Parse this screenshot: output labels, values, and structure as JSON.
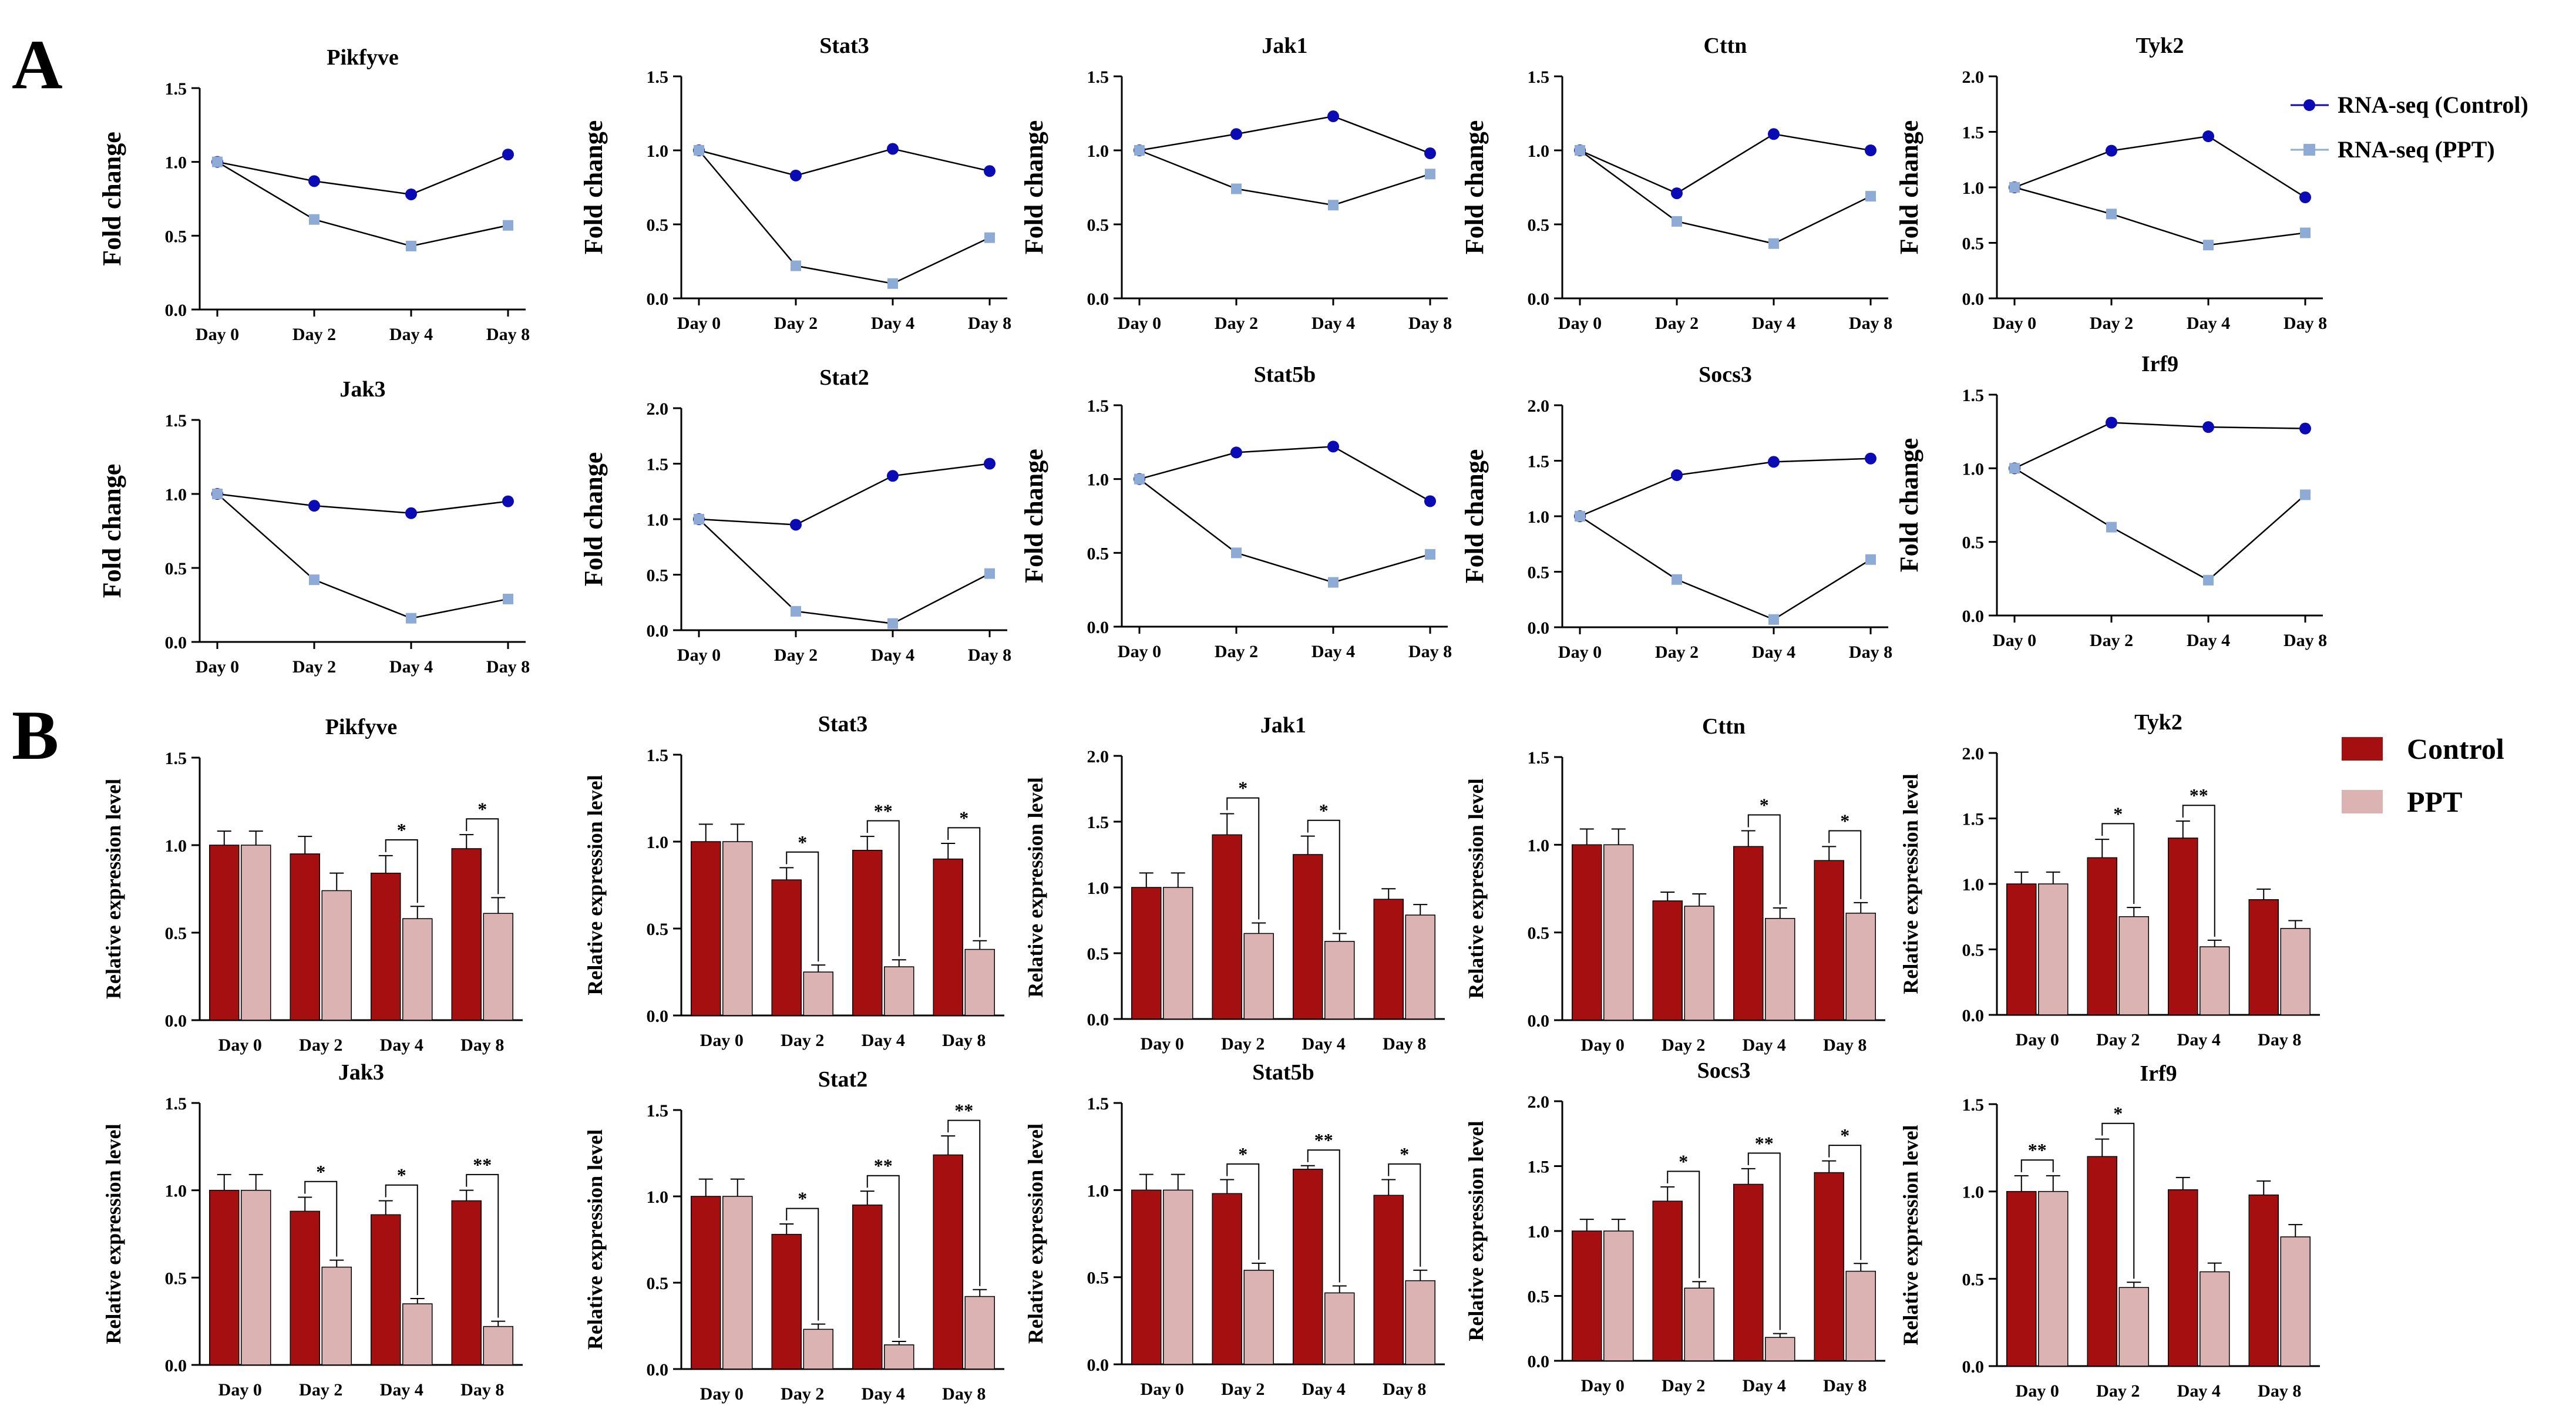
{
  "panel_labels": {
    "A": "A",
    "B": "B"
  },
  "colors": {
    "rna_control": "#0b0bb5",
    "rna_ppt": "#8eabd6",
    "bar_control": "#a50f0f",
    "bar_ppt": "#dcb3b3",
    "axis": "#000000"
  },
  "legend_A": {
    "control": "RNA-seq (Control)",
    "ppt": "RNA-seq (PPT)"
  },
  "legend_B": {
    "control": "Control",
    "ppt": "PPT"
  },
  "chart_data": [
    {
      "panel": "A",
      "type": "line",
      "title": "Pikfyve",
      "ylabel": "Fold change",
      "categories": [
        "Day 0",
        "Day 2",
        "Day 4",
        "Day 8"
      ],
      "ylim": [
        0,
        1.5
      ],
      "yticks": [
        "0.0",
        "0.5",
        "1.0",
        "1.5"
      ],
      "series": [
        {
          "name": "RNA-seq (Control)",
          "values": [
            1.0,
            0.87,
            0.78,
            1.05
          ]
        },
        {
          "name": "RNA-seq (PPT)",
          "values": [
            1.0,
            0.61,
            0.43,
            0.57
          ]
        }
      ]
    },
    {
      "panel": "A",
      "type": "line",
      "title": "Stat3",
      "ylabel": "Fold change",
      "categories": [
        "Day 0",
        "Day 2",
        "Day 4",
        "Day 8"
      ],
      "ylim": [
        0,
        1.5
      ],
      "yticks": [
        "0.0",
        "0.5",
        "1.0",
        "1.5"
      ],
      "series": [
        {
          "name": "RNA-seq (Control)",
          "values": [
            1.0,
            0.83,
            1.01,
            0.86
          ]
        },
        {
          "name": "RNA-seq (PPT)",
          "values": [
            1.0,
            0.22,
            0.1,
            0.41
          ]
        }
      ]
    },
    {
      "panel": "A",
      "type": "line",
      "title": "Jak1",
      "ylabel": "Fold change",
      "categories": [
        "Day 0",
        "Day 2",
        "Day 4",
        "Day 8"
      ],
      "ylim": [
        0,
        1.5
      ],
      "yticks": [
        "0.0",
        "0.5",
        "1.0",
        "1.5"
      ],
      "series": [
        {
          "name": "RNA-seq (Control)",
          "values": [
            1.0,
            1.11,
            1.23,
            0.98
          ]
        },
        {
          "name": "RNA-seq (PPT)",
          "values": [
            1.0,
            0.74,
            0.63,
            0.84
          ]
        }
      ]
    },
    {
      "panel": "A",
      "type": "line",
      "title": "Cttn",
      "ylabel": "Fold change",
      "categories": [
        "Day 0",
        "Day 2",
        "Day 4",
        "Day 8"
      ],
      "ylim": [
        0,
        1.5
      ],
      "yticks": [
        "0.0",
        "0.5",
        "1.0",
        "1.5"
      ],
      "series": [
        {
          "name": "RNA-seq (Control)",
          "values": [
            1.0,
            0.71,
            1.11,
            1.0
          ]
        },
        {
          "name": "RNA-seq (PPT)",
          "values": [
            1.0,
            0.52,
            0.37,
            0.69
          ]
        }
      ]
    },
    {
      "panel": "A",
      "type": "line",
      "title": "Tyk2",
      "ylabel": "Fold change",
      "categories": [
        "Day 0",
        "Day 2",
        "Day 4",
        "Day 8"
      ],
      "ylim": [
        0,
        2.0
      ],
      "yticks": [
        "0.0",
        "0.5",
        "1.0",
        "1.5",
        "2.0"
      ],
      "series": [
        {
          "name": "RNA-seq (Control)",
          "values": [
            1.0,
            1.33,
            1.46,
            0.91
          ]
        },
        {
          "name": "RNA-seq (PPT)",
          "values": [
            1.0,
            0.76,
            0.48,
            0.59
          ]
        }
      ]
    },
    {
      "panel": "A",
      "type": "line",
      "title": "Jak3",
      "ylabel": "Fold change",
      "categories": [
        "Day 0",
        "Day 2",
        "Day 4",
        "Day 8"
      ],
      "ylim": [
        0,
        1.5
      ],
      "yticks": [
        "0.0",
        "0.5",
        "1.0",
        "1.5"
      ],
      "series": [
        {
          "name": "RNA-seq (Control)",
          "values": [
            1.0,
            0.92,
            0.87,
            0.95
          ]
        },
        {
          "name": "RNA-seq (PPT)",
          "values": [
            1.0,
            0.42,
            0.16,
            0.29
          ]
        }
      ]
    },
    {
      "panel": "A",
      "type": "line",
      "title": "Stat2",
      "ylabel": "Fold change",
      "categories": [
        "Day 0",
        "Day 2",
        "Day 4",
        "Day 8"
      ],
      "ylim": [
        0,
        2.0
      ],
      "yticks": [
        "0.0",
        "0.5",
        "1.0",
        "1.5",
        "2.0"
      ],
      "series": [
        {
          "name": "RNA-seq (Control)",
          "values": [
            1.0,
            0.95,
            1.39,
            1.5
          ]
        },
        {
          "name": "RNA-seq (PPT)",
          "values": [
            1.0,
            0.17,
            0.06,
            0.51
          ]
        }
      ]
    },
    {
      "panel": "A",
      "type": "line",
      "title": "Stat5b",
      "ylabel": "Fold change",
      "categories": [
        "Day 0",
        "Day 2",
        "Day 4",
        "Day 8"
      ],
      "ylim": [
        0,
        1.5
      ],
      "yticks": [
        "0.0",
        "0.5",
        "1.0",
        "1.5"
      ],
      "series": [
        {
          "name": "RNA-seq (Control)",
          "values": [
            1.0,
            1.18,
            1.22,
            0.85
          ]
        },
        {
          "name": "RNA-seq (PPT)",
          "values": [
            1.0,
            0.5,
            0.3,
            0.49
          ]
        }
      ]
    },
    {
      "panel": "A",
      "type": "line",
      "title": "Socs3",
      "ylabel": "Fold change",
      "categories": [
        "Day 0",
        "Day 2",
        "Day 4",
        "Day 8"
      ],
      "ylim": [
        0,
        2.0
      ],
      "yticks": [
        "0.0",
        "0.5",
        "1.0",
        "1.5",
        "2.0"
      ],
      "series": [
        {
          "name": "RNA-seq (Control)",
          "values": [
            1.0,
            1.37,
            1.49,
            1.52
          ]
        },
        {
          "name": "RNA-seq (PPT)",
          "values": [
            1.0,
            0.43,
            0.07,
            0.61
          ]
        }
      ]
    },
    {
      "panel": "A",
      "type": "line",
      "title": "Irf9",
      "ylabel": "Fold change",
      "categories": [
        "Day 0",
        "Day 2",
        "Day 4",
        "Day 8"
      ],
      "ylim": [
        0,
        1.5
      ],
      "yticks": [
        "0.0",
        "0.5",
        "1.0",
        "1.5"
      ],
      "series": [
        {
          "name": "RNA-seq (Control)",
          "values": [
            1.0,
            1.31,
            1.28,
            1.27
          ]
        },
        {
          "name": "RNA-seq (PPT)",
          "values": [
            1.0,
            0.6,
            0.24,
            0.82
          ]
        }
      ]
    },
    {
      "panel": "B",
      "type": "bar",
      "title": "Pikfyve",
      "ylabel": "Relative expression level",
      "categories": [
        "Day 0",
        "Day 2",
        "Day 4",
        "Day 8"
      ],
      "ylim": [
        0,
        1.5
      ],
      "yticks": [
        "0.0",
        "0.5",
        "1.0",
        "1.5"
      ],
      "series": [
        {
          "name": "Control",
          "values": [
            1.0,
            0.95,
            0.84,
            0.98
          ],
          "errors": [
            0.08,
            0.1,
            0.1,
            0.08
          ]
        },
        {
          "name": "PPT",
          "values": [
            1.0,
            0.74,
            0.58,
            0.61
          ],
          "errors": [
            0.08,
            0.1,
            0.07,
            0.09
          ]
        }
      ],
      "significance": [
        "",
        "",
        "*",
        "*"
      ]
    },
    {
      "panel": "B",
      "type": "bar",
      "title": "Stat3",
      "ylabel": "Relative expression level",
      "categories": [
        "Day 0",
        "Day 2",
        "Day 4",
        "Day 8"
      ],
      "ylim": [
        0,
        1.5
      ],
      "yticks": [
        "0.0",
        "0.5",
        "1.0",
        "1.5"
      ],
      "series": [
        {
          "name": "Control",
          "values": [
            1.0,
            0.78,
            0.95,
            0.9
          ],
          "errors": [
            0.1,
            0.07,
            0.08,
            0.09
          ]
        },
        {
          "name": "PPT",
          "values": [
            1.0,
            0.25,
            0.28,
            0.38
          ],
          "errors": [
            0.1,
            0.04,
            0.04,
            0.05
          ]
        }
      ],
      "significance": [
        "",
        "*",
        "**",
        "*"
      ]
    },
    {
      "panel": "B",
      "type": "bar",
      "title": "Jak1",
      "ylabel": "Relative expression level",
      "categories": [
        "Day 0",
        "Day 2",
        "Day 4",
        "Day 8"
      ],
      "ylim": [
        0,
        2.0
      ],
      "yticks": [
        "0.0",
        "0.5",
        "1.0",
        "1.5",
        "2.0"
      ],
      "series": [
        {
          "name": "Control",
          "values": [
            1.0,
            1.4,
            1.25,
            0.91
          ],
          "errors": [
            0.11,
            0.16,
            0.14,
            0.08
          ]
        },
        {
          "name": "PPT",
          "values": [
            1.0,
            0.65,
            0.59,
            0.79
          ],
          "errors": [
            0.11,
            0.08,
            0.06,
            0.08
          ]
        }
      ],
      "significance": [
        "",
        "*",
        "*",
        ""
      ]
    },
    {
      "panel": "B",
      "type": "bar",
      "title": "Cttn",
      "ylabel": "Relative expression level",
      "categories": [
        "Day 0",
        "Day 2",
        "Day 4",
        "Day 8"
      ],
      "ylim": [
        0,
        1.5
      ],
      "yticks": [
        "0.0",
        "0.5",
        "1.0",
        "1.5"
      ],
      "series": [
        {
          "name": "Control",
          "values": [
            1.0,
            0.68,
            0.99,
            0.91
          ],
          "errors": [
            0.09,
            0.05,
            0.09,
            0.08
          ]
        },
        {
          "name": "PPT",
          "values": [
            1.0,
            0.65,
            0.58,
            0.61
          ],
          "errors": [
            0.09,
            0.07,
            0.06,
            0.06
          ]
        }
      ],
      "significance": [
        "",
        "",
        "*",
        "*"
      ]
    },
    {
      "panel": "B",
      "type": "bar",
      "title": "Tyk2",
      "ylabel": "Relative expression level",
      "categories": [
        "Day 0",
        "Day 2",
        "Day 4",
        "Day 8"
      ],
      "ylim": [
        0,
        2.0
      ],
      "yticks": [
        "0.0",
        "0.5",
        "1.0",
        "1.5",
        "2.0"
      ],
      "series": [
        {
          "name": "Control",
          "values": [
            1.0,
            1.2,
            1.35,
            0.88
          ],
          "errors": [
            0.09,
            0.14,
            0.13,
            0.08
          ]
        },
        {
          "name": "PPT",
          "values": [
            1.0,
            0.75,
            0.52,
            0.66
          ],
          "errors": [
            0.09,
            0.07,
            0.05,
            0.06
          ]
        }
      ],
      "significance": [
        "",
        "*",
        "**",
        ""
      ]
    },
    {
      "panel": "B",
      "type": "bar",
      "title": "Jak3",
      "ylabel": "Relative expression level",
      "categories": [
        "Day 0",
        "Day 2",
        "Day 4",
        "Day 8"
      ],
      "ylim": [
        0,
        1.5
      ],
      "yticks": [
        "0.0",
        "0.5",
        "1.0",
        "1.5"
      ],
      "series": [
        {
          "name": "Control",
          "values": [
            1.0,
            0.88,
            0.86,
            0.94
          ],
          "errors": [
            0.09,
            0.08,
            0.08,
            0.06
          ]
        },
        {
          "name": "PPT",
          "values": [
            1.0,
            0.56,
            0.35,
            0.22
          ],
          "errors": [
            0.09,
            0.04,
            0.03,
            0.03
          ]
        }
      ],
      "significance": [
        "",
        "*",
        "*",
        "**"
      ]
    },
    {
      "panel": "B",
      "type": "bar",
      "title": "Stat2",
      "ylabel": "Relative expression level",
      "categories": [
        "Day 0",
        "Day 2",
        "Day 4",
        "Day 8"
      ],
      "ylim": [
        0,
        1.5
      ],
      "yticks": [
        "0.0",
        "0.5",
        "1.0",
        "1.5"
      ],
      "series": [
        {
          "name": "Control",
          "values": [
            1.0,
            0.78,
            0.95,
            1.24
          ],
          "errors": [
            0.1,
            0.06,
            0.08,
            0.11
          ]
        },
        {
          "name": "PPT",
          "values": [
            1.0,
            0.23,
            0.14,
            0.42
          ],
          "errors": [
            0.1,
            0.03,
            0.02,
            0.04
          ]
        }
      ],
      "significance": [
        "",
        "*",
        "**",
        "**"
      ]
    },
    {
      "panel": "B",
      "type": "bar",
      "title": "Stat5b",
      "ylabel": "Relative expression level",
      "categories": [
        "Day 0",
        "Day 2",
        "Day 4",
        "Day 8"
      ],
      "ylim": [
        0,
        1.5
      ],
      "yticks": [
        "0.0",
        "0.5",
        "1.0",
        "1.5"
      ],
      "series": [
        {
          "name": "Control",
          "values": [
            1.0,
            0.98,
            1.12,
            0.97
          ],
          "errors": [
            0.09,
            0.08,
            0.02,
            0.09
          ]
        },
        {
          "name": "PPT",
          "values": [
            1.0,
            0.54,
            0.41,
            0.48
          ],
          "errors": [
            0.09,
            0.04,
            0.04,
            0.06
          ]
        }
      ],
      "significance": [
        "",
        "*",
        "**",
        "*"
      ]
    },
    {
      "panel": "B",
      "type": "bar",
      "title": "Socs3",
      "ylabel": "Relative expression level",
      "categories": [
        "Day 0",
        "Day 2",
        "Day 4",
        "Day 8"
      ],
      "ylim": [
        0,
        2.0
      ],
      "yticks": [
        "0.0",
        "0.5",
        "1.0",
        "1.5",
        "2.0"
      ],
      "series": [
        {
          "name": "Control",
          "values": [
            1.0,
            1.23,
            1.36,
            1.45
          ],
          "errors": [
            0.09,
            0.11,
            0.12,
            0.09
          ]
        },
        {
          "name": "PPT",
          "values": [
            1.0,
            0.56,
            0.18,
            0.69
          ],
          "errors": [
            0.09,
            0.05,
            0.03,
            0.06
          ]
        }
      ],
      "significance": [
        "",
        "*",
        "**",
        "*"
      ]
    },
    {
      "panel": "B",
      "type": "bar",
      "title": "Irf9",
      "ylabel": "Relative expression level",
      "categories": [
        "Day 0",
        "Day 2",
        "Day 4",
        "Day 8"
      ],
      "ylim": [
        0,
        1.5
      ],
      "yticks": [
        "0.0",
        "0.5",
        "1.0",
        "1.5"
      ],
      "series": [
        {
          "name": "Control",
          "values": [
            1.0,
            1.2,
            1.01,
            0.98
          ],
          "errors": [
            0.09,
            0.1,
            0.07,
            0.08
          ]
        },
        {
          "name": "PPT",
          "values": [
            1.0,
            0.45,
            0.54,
            0.74
          ],
          "errors": [
            0.09,
            0.03,
            0.05,
            0.07
          ]
        }
      ],
      "significance": [
        "**",
        "*",
        "",
        ""
      ]
    }
  ]
}
